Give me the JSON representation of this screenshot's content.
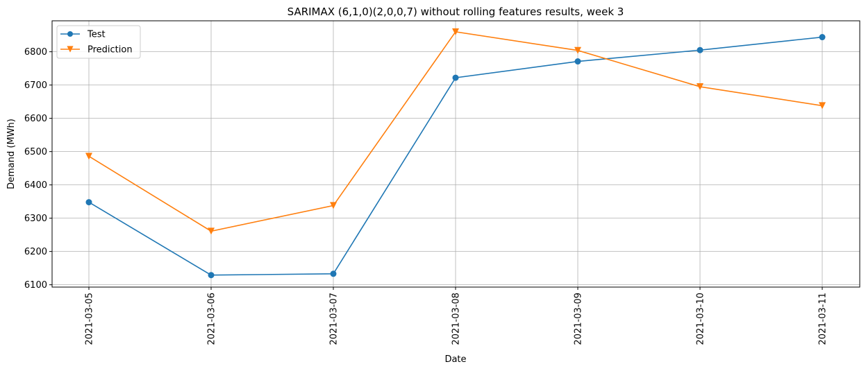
{
  "chart_data": {
    "type": "line",
    "title": "SARIMAX (6,1,0)(2,0,0,7) without rolling features results, week 3",
    "xlabel": "Date",
    "ylabel": "Demand (MWh)",
    "categories": [
      "2021-03-05",
      "2021-03-06",
      "2021-03-07",
      "2021-03-08",
      "2021-03-09",
      "2021-03-10",
      "2021-03-11"
    ],
    "yticks": [
      6100,
      6200,
      6300,
      6400,
      6500,
      6600,
      6700,
      6800
    ],
    "ylim": [
      6093,
      6893
    ],
    "grid": true,
    "legend_position": "upper-left",
    "series": [
      {
        "name": "Test",
        "color": "#1f77b4",
        "marker": "circle",
        "values": [
          6348,
          6129,
          6133,
          6722,
          6771,
          6805,
          6844
        ]
      },
      {
        "name": "Prediction",
        "color": "#ff7f0e",
        "marker": "triangle-down",
        "values": [
          6486,
          6261,
          6338,
          6860,
          6804,
          6695,
          6638
        ]
      }
    ]
  }
}
